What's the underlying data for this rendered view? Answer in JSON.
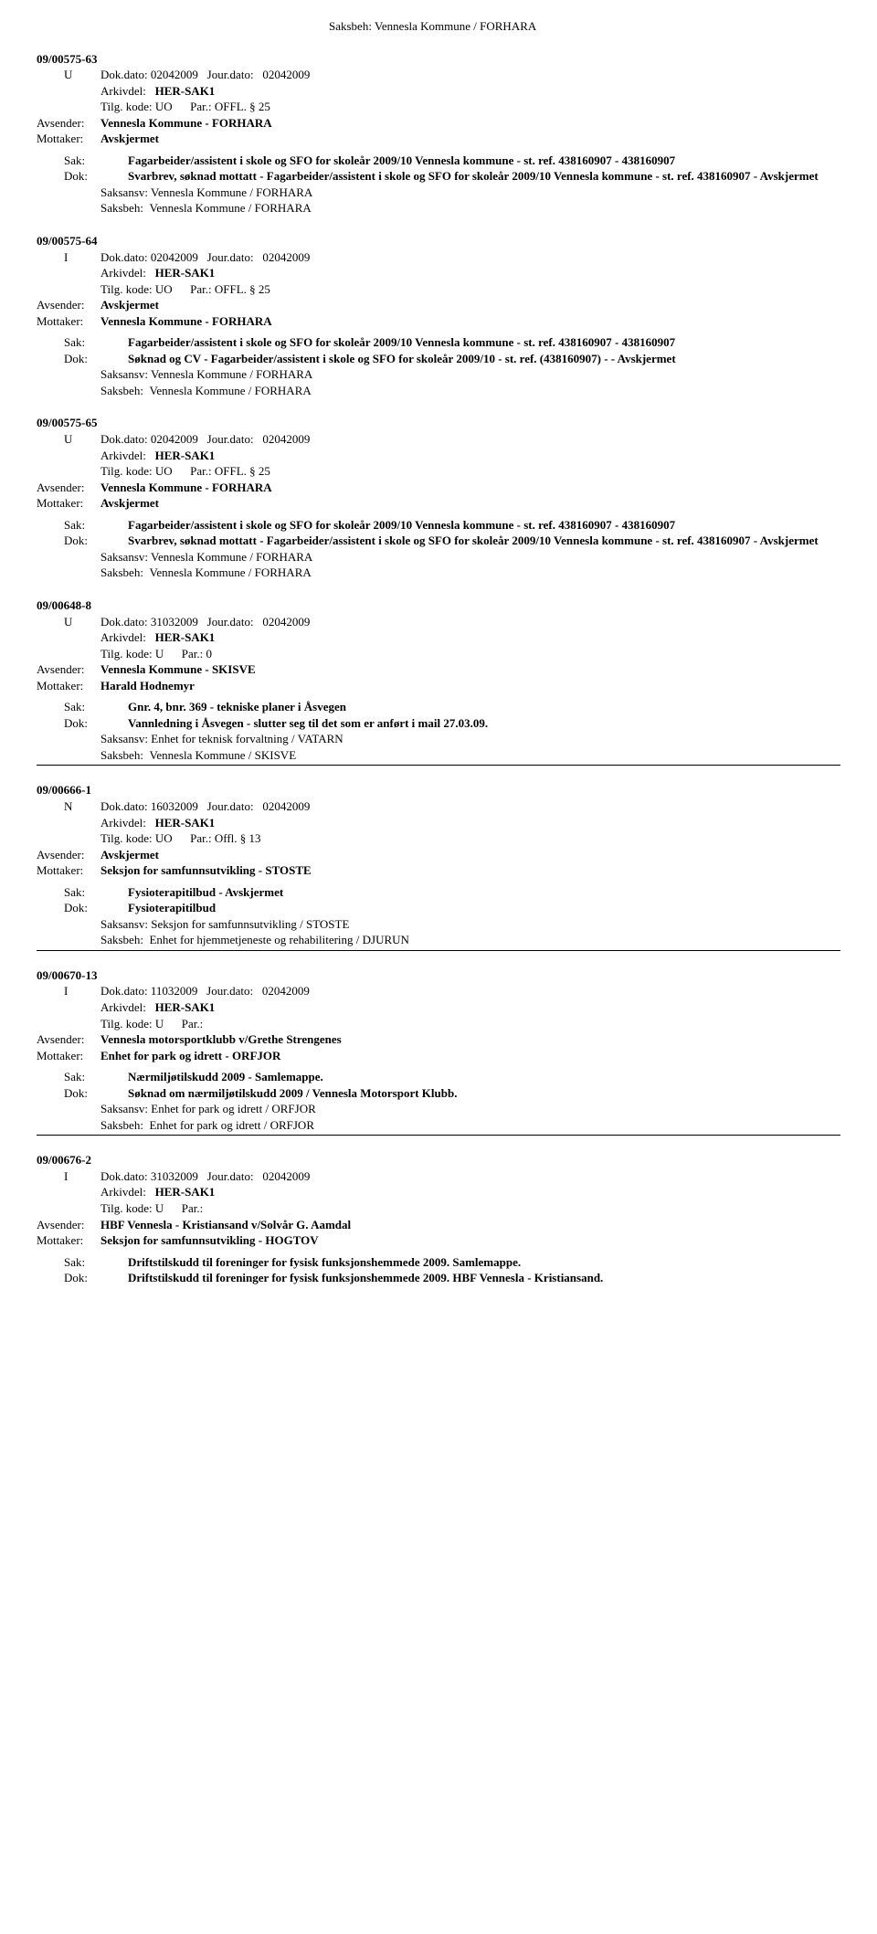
{
  "topHeader": {
    "saksbeh": "Saksbeh:",
    "saksbehValue": "Vennesla Kommune / FORHARA"
  },
  "records": [
    {
      "caseId": "09/00575-63",
      "typeLetter": "U",
      "docDate": "Dok.dato: 02042009",
      "jourDate": "Jour.dato:",
      "jourDateValue": "02042009",
      "arkivdel": "Arkivdel:",
      "arkivdelValue": "HER-SAK1",
      "tilgKode": "Tilg. kode: UO",
      "par": "Par.: OFFL. § 25",
      "avsender": "Avsender:",
      "avsenderValue": "Vennesla Kommune - FORHARA",
      "mottaker": "Mottaker:",
      "mottakerValue": "Avskjermet",
      "sak": "Sak:",
      "sakValue": "Fagarbeider/assistent i skole og SFO for skoleår 2009/10 Vennesla kommune - st. ref. 438160907 - 438160907",
      "dok": "Dok:",
      "dokValue": "Svarbrev, søknad mottatt - Fagarbeider/assistent i skole og SFO for skoleår 2009/10 Vennesla kommune - st. ref. 438160907 - Avskjermet",
      "saksansv": "Saksansv: Vennesla Kommune / FORHARA",
      "saksbeh": "Saksbeh:",
      "saksbehValue": "Vennesla Kommune / FORHARA"
    },
    {
      "caseId": "09/00575-64",
      "typeLetter": "I",
      "docDate": "Dok.dato: 02042009",
      "jourDate": "Jour.dato:",
      "jourDateValue": "02042009",
      "arkivdel": "Arkivdel:",
      "arkivdelValue": "HER-SAK1",
      "tilgKode": "Tilg. kode: UO",
      "par": "Par.: OFFL. § 25",
      "avsender": "Avsender:",
      "avsenderValue": "Avskjermet",
      "mottaker": "Mottaker:",
      "mottakerValue": "Vennesla Kommune - FORHARA",
      "sak": "Sak:",
      "sakValue": "Fagarbeider/assistent i skole og SFO for skoleår 2009/10 Vennesla kommune - st. ref. 438160907 - 438160907",
      "dok": "Dok:",
      "dokValue": "Søknad og CV - Fagarbeider/assistent i skole og SFO for skoleår 2009/10 - st. ref. (438160907) - - Avskjermet",
      "saksansv": "Saksansv: Vennesla Kommune / FORHARA",
      "saksbeh": "Saksbeh:",
      "saksbehValue": "Vennesla Kommune / FORHARA"
    },
    {
      "caseId": "09/00575-65",
      "typeLetter": "U",
      "docDate": "Dok.dato: 02042009",
      "jourDate": "Jour.dato:",
      "jourDateValue": "02042009",
      "arkivdel": "Arkivdel:",
      "arkivdelValue": "HER-SAK1",
      "tilgKode": "Tilg. kode: UO",
      "par": "Par.: OFFL. § 25",
      "avsender": "Avsender:",
      "avsenderValue": "Vennesla Kommune - FORHARA",
      "mottaker": "Mottaker:",
      "mottakerValue": "Avskjermet",
      "sak": "Sak:",
      "sakValue": "Fagarbeider/assistent i skole og SFO for skoleår 2009/10 Vennesla kommune - st. ref. 438160907 - 438160907",
      "dok": "Dok:",
      "dokValue": "Svarbrev, søknad mottatt - Fagarbeider/assistent i skole og SFO for skoleår 2009/10 Vennesla kommune - st. ref. 438160907 - Avskjermet",
      "saksansv": "Saksansv: Vennesla Kommune / FORHARA",
      "saksbeh": "Saksbeh:",
      "saksbehValue": "Vennesla Kommune / FORHARA"
    },
    {
      "caseId": "09/00648-8",
      "typeLetter": "U",
      "docDate": "Dok.dato: 31032009",
      "jourDate": "Jour.dato:",
      "jourDateValue": "02042009",
      "arkivdel": "Arkivdel:",
      "arkivdelValue": "HER-SAK1",
      "tilgKode": "Tilg. kode: U",
      "par": "Par.: 0",
      "avsender": "Avsender:",
      "avsenderValue": "Vennesla Kommune - SKISVE",
      "mottaker": "Mottaker:",
      "mottakerValue": "Harald Hodnemyr",
      "sak": "Sak:",
      "sakValue": "Gnr. 4, bnr. 369 - tekniske planer i Åsvegen",
      "dok": "Dok:",
      "dokValue": "Vannledning i Åsvegen - slutter seg til det som er anført i mail 27.03.09.",
      "saksansv": "Saksansv: Enhet for teknisk forvaltning / VATARN",
      "saksbeh": "Saksbeh:",
      "saksbehValue": "Vennesla Kommune / SKISVE"
    },
    {
      "caseId": "09/00666-1",
      "typeLetter": "N",
      "docDate": "Dok.dato: 16032009",
      "jourDate": "Jour.dato:",
      "jourDateValue": "02042009",
      "arkivdel": "Arkivdel:",
      "arkivdelValue": "HER-SAK1",
      "tilgKode": "Tilg. kode: UO",
      "par": "Par.: Offl. § 13",
      "avsender": "Avsender:",
      "avsenderValue": "Avskjermet",
      "mottaker": "Mottaker:",
      "mottakerValue": "Seksjon for samfunnsutvikling - STOSTE",
      "sak": "Sak:",
      "sakValue": "Fysioterapitilbud - Avskjermet",
      "dok": "Dok:",
      "dokValue": "Fysioterapitilbud",
      "saksansv": "Saksansv: Seksjon for samfunnsutvikling / STOSTE",
      "saksbeh": "Saksbeh:",
      "saksbehValue": "Enhet for hjemmetjeneste og rehabilitering / DJURUN"
    },
    {
      "caseId": "09/00670-13",
      "typeLetter": "I",
      "docDate": "Dok.dato: 11032009",
      "jourDate": "Jour.dato:",
      "jourDateValue": "02042009",
      "arkivdel": "Arkivdel:",
      "arkivdelValue": "HER-SAK1",
      "tilgKode": "Tilg. kode: U",
      "par": "Par.:",
      "avsender": "Avsender:",
      "avsenderValue": "Vennesla motorsportklubb v/Grethe Strengenes",
      "mottaker": "Mottaker:",
      "mottakerValue": "Enhet for park og idrett - ORFJOR",
      "sak": "Sak:",
      "sakValue": "Nærmiljøtilskudd 2009 - Samlemappe.",
      "dok": "Dok:",
      "dokValue": "Søknad om nærmiljøtilskudd 2009 / Vennesla Motorsport Klubb.",
      "saksansv": "Saksansv: Enhet for park og idrett / ORFJOR",
      "saksbeh": "Saksbeh:",
      "saksbehValue": "Enhet for park og idrett / ORFJOR"
    },
    {
      "caseId": "09/00676-2",
      "typeLetter": "I",
      "docDate": "Dok.dato: 31032009",
      "jourDate": "Jour.dato:",
      "jourDateValue": "02042009",
      "arkivdel": "Arkivdel:",
      "arkivdelValue": "HER-SAK1",
      "tilgKode": "Tilg. kode: U",
      "par": "Par.:",
      "avsender": "Avsender:",
      "avsenderValue": "HBF Vennesla - Kristiansand v/Solvår G. Aamdal",
      "mottaker": "Mottaker:",
      "mottakerValue": "Seksjon for samfunnsutvikling - HOGTOV",
      "sak": "Sak:",
      "sakValue": "Driftstilskudd til foreninger for fysisk funksjonshemmede 2009. Samlemappe.",
      "dok": "Dok:",
      "dokValue": "Driftstilskudd til foreninger for fysisk funksjonshemmede 2009. HBF Vennesla - Kristiansand.",
      "saksansv": "",
      "saksbeh": "",
      "saksbehValue": ""
    }
  ]
}
